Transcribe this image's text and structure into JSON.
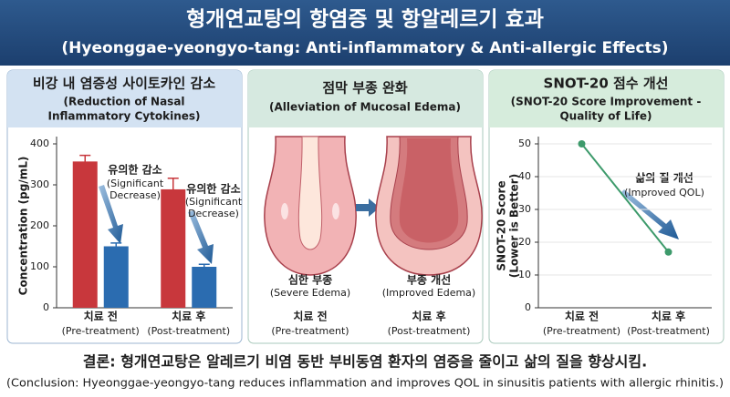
{
  "header": {
    "title": "형개연교탕의 항염증 및 항알레르기 효과",
    "subtitle": "(Hyeonggae-yeongyo-tang: Anti-inflammatory & Anti-allergic Effects)"
  },
  "chart_data": [
    {
      "type": "bar",
      "title": "비강 내 염증성 사이토카인 감소",
      "subtitle": [
        "(Reduction of Nasal",
        "Inflammatory Cytokines)"
      ],
      "ylabel": "Concentration (pg/mL)",
      "categories": [
        "치료 전",
        "치료 후"
      ],
      "category_notes": [
        "(Pre-treatment)",
        "(Post-treatment)"
      ],
      "series": [
        {
          "color": "#c8373c",
          "values": [
            357,
            289
          ],
          "errors": [
            15,
            27
          ]
        },
        {
          "color": "#2b6cb0",
          "values": [
            150,
            100
          ],
          "errors": [
            8,
            6
          ]
        }
      ],
      "ylim": [
        0,
        400
      ],
      "yticks": [
        0,
        100,
        200,
        300,
        400
      ],
      "grid": false,
      "annotations": [
        {
          "text": "유의한 감소",
          "note": [
            "(Significant",
            "Decrease)"
          ]
        },
        {
          "text": "유의한 감소",
          "note": [
            "(Significant",
            "Decrease)"
          ]
        }
      ]
    },
    {
      "type": "line",
      "title": "SNOT-20 점수 개선",
      "subtitle": [
        "(SNOT-20 Score Improvement -",
        "Quality of Life)"
      ],
      "ylabel": [
        "SNOT-20 Score",
        "(Lower is Better)"
      ],
      "categories": [
        "치료 전",
        "치료 후"
      ],
      "category_notes": [
        "(Pre-treatment)",
        "(Post-treatment)"
      ],
      "series": [
        {
          "color": "#3d9a6b",
          "values": [
            50,
            17
          ]
        }
      ],
      "ylim": [
        0,
        50
      ],
      "yticks": [
        0,
        10,
        20,
        30,
        40,
        50
      ],
      "grid": true,
      "annotations": [
        {
          "text": "삶의 질 개선",
          "note": [
            "(Improved QOL)"
          ]
        }
      ]
    }
  ],
  "diagram": {
    "title": "점막 부종 완화",
    "subtitle": "(Alleviation of Mucosal Edema)",
    "stages": [
      {
        "label": "심한 부종",
        "note": "(Severe Edema)",
        "time": "치료 전",
        "time_note": "(Pre-treatment)"
      },
      {
        "label": "부종 개선",
        "note": "(Improved Edema)",
        "time": "치료 후",
        "time_note": "(Post-treatment)"
      }
    ]
  },
  "conclusion": {
    "text": "결론: 형개연교탕은 알레르기 비염 동반 부비동염 환자의 염증을 줄이고 삶의 질을 향상시킴.",
    "note": "(Conclusion: Hyeonggae-yeongyo-tang reduces inflammation and improves QOL in sinusitis patients with allergic rhinitis.)"
  }
}
